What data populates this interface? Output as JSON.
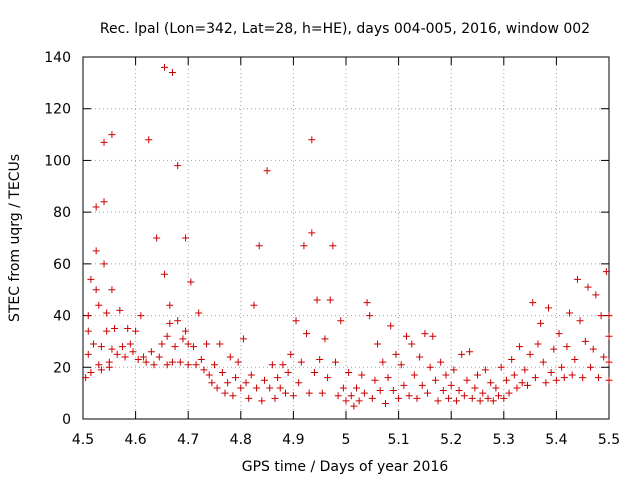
{
  "chart_data": {
    "type": "scatter",
    "title": "Rec. lpal (Lon=342, Lat=28, h=HE), days 004-005, 2016, window 002",
    "xlabel": "GPS time / Days of year 2016",
    "ylabel": "STEC from uqrg / TECUs",
    "xlim": [
      4.5,
      5.5
    ],
    "ylim": [
      0,
      140
    ],
    "xticks": [
      "4.5",
      "4.6",
      "4.7",
      "4.8",
      "4.9",
      "5",
      "5.1",
      "5.2",
      "5.3",
      "5.4",
      "5.5"
    ],
    "yticks": [
      "0",
      "20",
      "40",
      "60",
      "80",
      "100",
      "120",
      "140"
    ],
    "grid": true,
    "legend": "none",
    "marker": "plus",
    "color": "#cc0000",
    "points": [
      [
        4.505,
        16
      ],
      [
        4.51,
        25
      ],
      [
        4.51,
        34
      ],
      [
        4.51,
        40
      ],
      [
        4.515,
        18
      ],
      [
        4.515,
        54
      ],
      [
        4.52,
        29
      ],
      [
        4.525,
        65
      ],
      [
        4.525,
        82
      ],
      [
        4.525,
        50
      ],
      [
        4.53,
        44
      ],
      [
        4.53,
        21
      ],
      [
        4.535,
        28
      ],
      [
        4.535,
        19
      ],
      [
        4.54,
        107
      ],
      [
        4.54,
        60
      ],
      [
        4.54,
        84
      ],
      [
        4.545,
        41
      ],
      [
        4.545,
        34
      ],
      [
        4.55,
        20
      ],
      [
        4.55,
        22
      ],
      [
        4.555,
        110
      ],
      [
        4.555,
        50
      ],
      [
        4.555,
        27
      ],
      [
        4.56,
        35
      ],
      [
        4.565,
        25
      ],
      [
        4.57,
        42
      ],
      [
        4.575,
        28
      ],
      [
        4.58,
        24
      ],
      [
        4.585,
        35
      ],
      [
        4.59,
        29
      ],
      [
        4.595,
        26
      ],
      [
        4.6,
        34
      ],
      [
        4.605,
        23
      ],
      [
        4.61,
        40
      ],
      [
        4.615,
        24
      ],
      [
        4.62,
        22
      ],
      [
        4.625,
        108
      ],
      [
        4.63,
        26
      ],
      [
        4.635,
        21
      ],
      [
        4.64,
        70
      ],
      [
        4.645,
        24
      ],
      [
        4.65,
        29
      ],
      [
        4.655,
        136
      ],
      [
        4.655,
        56
      ],
      [
        4.66,
        21
      ],
      [
        4.66,
        32
      ],
      [
        4.665,
        44
      ],
      [
        4.665,
        37
      ],
      [
        4.67,
        134
      ],
      [
        4.67,
        22
      ],
      [
        4.675,
        28
      ],
      [
        4.68,
        98
      ],
      [
        4.68,
        38
      ],
      [
        4.685,
        22
      ],
      [
        4.69,
        31
      ],
      [
        4.695,
        70
      ],
      [
        4.695,
        34
      ],
      [
        4.7,
        29
      ],
      [
        4.7,
        21
      ],
      [
        4.705,
        53
      ],
      [
        4.71,
        28
      ],
      [
        4.715,
        21
      ],
      [
        4.72,
        41
      ],
      [
        4.725,
        23
      ],
      [
        4.73,
        19
      ],
      [
        4.735,
        29
      ],
      [
        4.74,
        17
      ],
      [
        4.745,
        14
      ],
      [
        4.75,
        21
      ],
      [
        4.755,
        12
      ],
      [
        4.76,
        29
      ],
      [
        4.765,
        18
      ],
      [
        4.77,
        10
      ],
      [
        4.775,
        14
      ],
      [
        4.78,
        24
      ],
      [
        4.785,
        9
      ],
      [
        4.79,
        16
      ],
      [
        4.795,
        22
      ],
      [
        4.8,
        12
      ],
      [
        4.805,
        31
      ],
      [
        4.81,
        14
      ],
      [
        4.815,
        8
      ],
      [
        4.82,
        17
      ],
      [
        4.825,
        44
      ],
      [
        4.83,
        12
      ],
      [
        4.835,
        67
      ],
      [
        4.84,
        7
      ],
      [
        4.845,
        15
      ],
      [
        4.85,
        96
      ],
      [
        4.855,
        12
      ],
      [
        4.86,
        21
      ],
      [
        4.865,
        8
      ],
      [
        4.87,
        16
      ],
      [
        4.875,
        12
      ],
      [
        4.88,
        21
      ],
      [
        4.885,
        10
      ],
      [
        4.89,
        18
      ],
      [
        4.895,
        25
      ],
      [
        4.9,
        9
      ],
      [
        4.905,
        38
      ],
      [
        4.91,
        14
      ],
      [
        4.915,
        22
      ],
      [
        4.92,
        67
      ],
      [
        4.925,
        33
      ],
      [
        4.93,
        10
      ],
      [
        4.935,
        72
      ],
      [
        4.935,
        108
      ],
      [
        4.94,
        18
      ],
      [
        4.945,
        46
      ],
      [
        4.95,
        23
      ],
      [
        4.955,
        10
      ],
      [
        4.96,
        31
      ],
      [
        4.965,
        16
      ],
      [
        4.97,
        46
      ],
      [
        4.975,
        67
      ],
      [
        4.98,
        22
      ],
      [
        4.985,
        9
      ],
      [
        4.99,
        38
      ],
      [
        4.995,
        12
      ],
      [
        5.0,
        7
      ],
      [
        5.005,
        18
      ],
      [
        5.01,
        9
      ],
      [
        5.015,
        5
      ],
      [
        5.02,
        12
      ],
      [
        5.025,
        7
      ],
      [
        5.03,
        17
      ],
      [
        5.035,
        10
      ],
      [
        5.04,
        45
      ],
      [
        5.045,
        40
      ],
      [
        5.05,
        8
      ],
      [
        5.055,
        15
      ],
      [
        5.06,
        29
      ],
      [
        5.065,
        11
      ],
      [
        5.07,
        22
      ],
      [
        5.075,
        6
      ],
      [
        5.08,
        16
      ],
      [
        5.085,
        36
      ],
      [
        5.09,
        11
      ],
      [
        5.095,
        25
      ],
      [
        5.1,
        8
      ],
      [
        5.105,
        21
      ],
      [
        5.11,
        13
      ],
      [
        5.115,
        32
      ],
      [
        5.12,
        9
      ],
      [
        5.125,
        29
      ],
      [
        5.13,
        17
      ],
      [
        5.135,
        8
      ],
      [
        5.14,
        24
      ],
      [
        5.145,
        13
      ],
      [
        5.15,
        33
      ],
      [
        5.155,
        10
      ],
      [
        5.16,
        20
      ],
      [
        5.165,
        32
      ],
      [
        5.17,
        15
      ],
      [
        5.175,
        7
      ],
      [
        5.18,
        22
      ],
      [
        5.185,
        11
      ],
      [
        5.19,
        17
      ],
      [
        5.195,
        8
      ],
      [
        5.2,
        13
      ],
      [
        5.205,
        19
      ],
      [
        5.21,
        7
      ],
      [
        5.215,
        11
      ],
      [
        5.22,
        25
      ],
      [
        5.225,
        9
      ],
      [
        5.23,
        15
      ],
      [
        5.235,
        26
      ],
      [
        5.24,
        8
      ],
      [
        5.245,
        12
      ],
      [
        5.25,
        17
      ],
      [
        5.255,
        7
      ],
      [
        5.26,
        10
      ],
      [
        5.265,
        19
      ],
      [
        5.27,
        8
      ],
      [
        5.275,
        14
      ],
      [
        5.28,
        7
      ],
      [
        5.285,
        12
      ],
      [
        5.29,
        9
      ],
      [
        5.295,
        20
      ],
      [
        5.3,
        8
      ],
      [
        5.305,
        15
      ],
      [
        5.31,
        10
      ],
      [
        5.315,
        23
      ],
      [
        5.32,
        17
      ],
      [
        5.325,
        12
      ],
      [
        5.33,
        28
      ],
      [
        5.335,
        14
      ],
      [
        5.34,
        19
      ],
      [
        5.345,
        13
      ],
      [
        5.35,
        25
      ],
      [
        5.355,
        45
      ],
      [
        5.36,
        16
      ],
      [
        5.365,
        29
      ],
      [
        5.37,
        37
      ],
      [
        5.375,
        22
      ],
      [
        5.38,
        14
      ],
      [
        5.385,
        43
      ],
      [
        5.39,
        18
      ],
      [
        5.395,
        27
      ],
      [
        5.4,
        15
      ],
      [
        5.405,
        33
      ],
      [
        5.41,
        20
      ],
      [
        5.415,
        16
      ],
      [
        5.42,
        28
      ],
      [
        5.425,
        41
      ],
      [
        5.43,
        17
      ],
      [
        5.435,
        23
      ],
      [
        5.44,
        54
      ],
      [
        5.445,
        38
      ],
      [
        5.45,
        16
      ],
      [
        5.455,
        30
      ],
      [
        5.46,
        51
      ],
      [
        5.465,
        20
      ],
      [
        5.47,
        27
      ],
      [
        5.475,
        48
      ],
      [
        5.48,
        16
      ],
      [
        5.485,
        40
      ],
      [
        5.49,
        24
      ],
      [
        5.495,
        57
      ],
      [
        5.5,
        32
      ],
      [
        5.5,
        40
      ],
      [
        5.5,
        22
      ],
      [
        5.5,
        15
      ]
    ]
  }
}
